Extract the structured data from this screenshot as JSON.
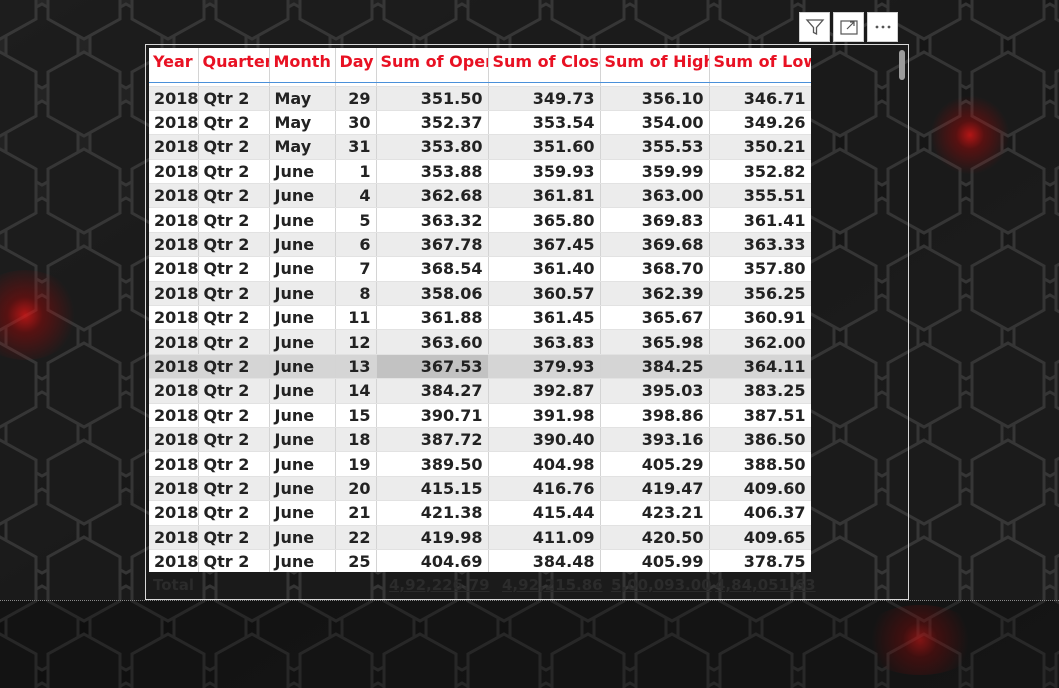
{
  "header_icons": [
    "filter-icon",
    "focus-mode-icon",
    "more-options-icon"
  ],
  "colors": {
    "header_text": "#e81123",
    "background": "#161616",
    "accent_glow": "#e61414"
  },
  "table": {
    "columns": [
      "Year",
      "Quarter",
      "Month",
      "Day",
      "Sum of Open",
      "Sum of Close",
      "Sum of High",
      "Sum of Low"
    ],
    "rows": [
      [
        "2018",
        "Qtr 2",
        "May",
        "29",
        "351.50",
        "349.73",
        "356.10",
        "346.71"
      ],
      [
        "2018",
        "Qtr 2",
        "May",
        "30",
        "352.37",
        "353.54",
        "354.00",
        "349.26"
      ],
      [
        "2018",
        "Qtr 2",
        "May",
        "31",
        "353.80",
        "351.60",
        "355.53",
        "350.21"
      ],
      [
        "2018",
        "Qtr 2",
        "June",
        "1",
        "353.88",
        "359.93",
        "359.99",
        "352.82"
      ],
      [
        "2018",
        "Qtr 2",
        "June",
        "4",
        "362.68",
        "361.81",
        "363.00",
        "355.51"
      ],
      [
        "2018",
        "Qtr 2",
        "June",
        "5",
        "363.32",
        "365.80",
        "369.83",
        "361.41"
      ],
      [
        "2018",
        "Qtr 2",
        "June",
        "6",
        "367.78",
        "367.45",
        "369.68",
        "363.33"
      ],
      [
        "2018",
        "Qtr 2",
        "June",
        "7",
        "368.54",
        "361.40",
        "368.70",
        "357.80"
      ],
      [
        "2018",
        "Qtr 2",
        "June",
        "8",
        "358.06",
        "360.57",
        "362.39",
        "356.25"
      ],
      [
        "2018",
        "Qtr 2",
        "June",
        "11",
        "361.88",
        "361.45",
        "365.67",
        "360.91"
      ],
      [
        "2018",
        "Qtr 2",
        "June",
        "12",
        "363.60",
        "363.83",
        "365.98",
        "362.00"
      ],
      [
        "2018",
        "Qtr 2",
        "June",
        "13",
        "367.53",
        "379.93",
        "384.25",
        "364.11"
      ],
      [
        "2018",
        "Qtr 2",
        "June",
        "14",
        "384.27",
        "392.87",
        "395.03",
        "383.25"
      ],
      [
        "2018",
        "Qtr 2",
        "June",
        "15",
        "390.71",
        "391.98",
        "398.86",
        "387.51"
      ],
      [
        "2018",
        "Qtr 2",
        "June",
        "18",
        "387.72",
        "390.40",
        "393.16",
        "386.50"
      ],
      [
        "2018",
        "Qtr 2",
        "June",
        "19",
        "389.50",
        "404.98",
        "405.29",
        "388.50"
      ],
      [
        "2018",
        "Qtr 2",
        "June",
        "20",
        "415.15",
        "416.76",
        "419.47",
        "409.60"
      ],
      [
        "2018",
        "Qtr 2",
        "June",
        "21",
        "421.38",
        "415.44",
        "423.21",
        "406.37"
      ],
      [
        "2018",
        "Qtr 2",
        "June",
        "22",
        "419.98",
        "411.09",
        "420.50",
        "409.65"
      ],
      [
        "2018",
        "Qtr 2",
        "June",
        "25",
        "404.69",
        "384.48",
        "405.99",
        "378.75"
      ]
    ],
    "selected_row": 11,
    "total": {
      "label": "Total",
      "open": "4,92,226.79",
      "close": "4,92,215.86",
      "high": "5,00,093.00",
      "low": "4,84,051.63"
    }
  }
}
